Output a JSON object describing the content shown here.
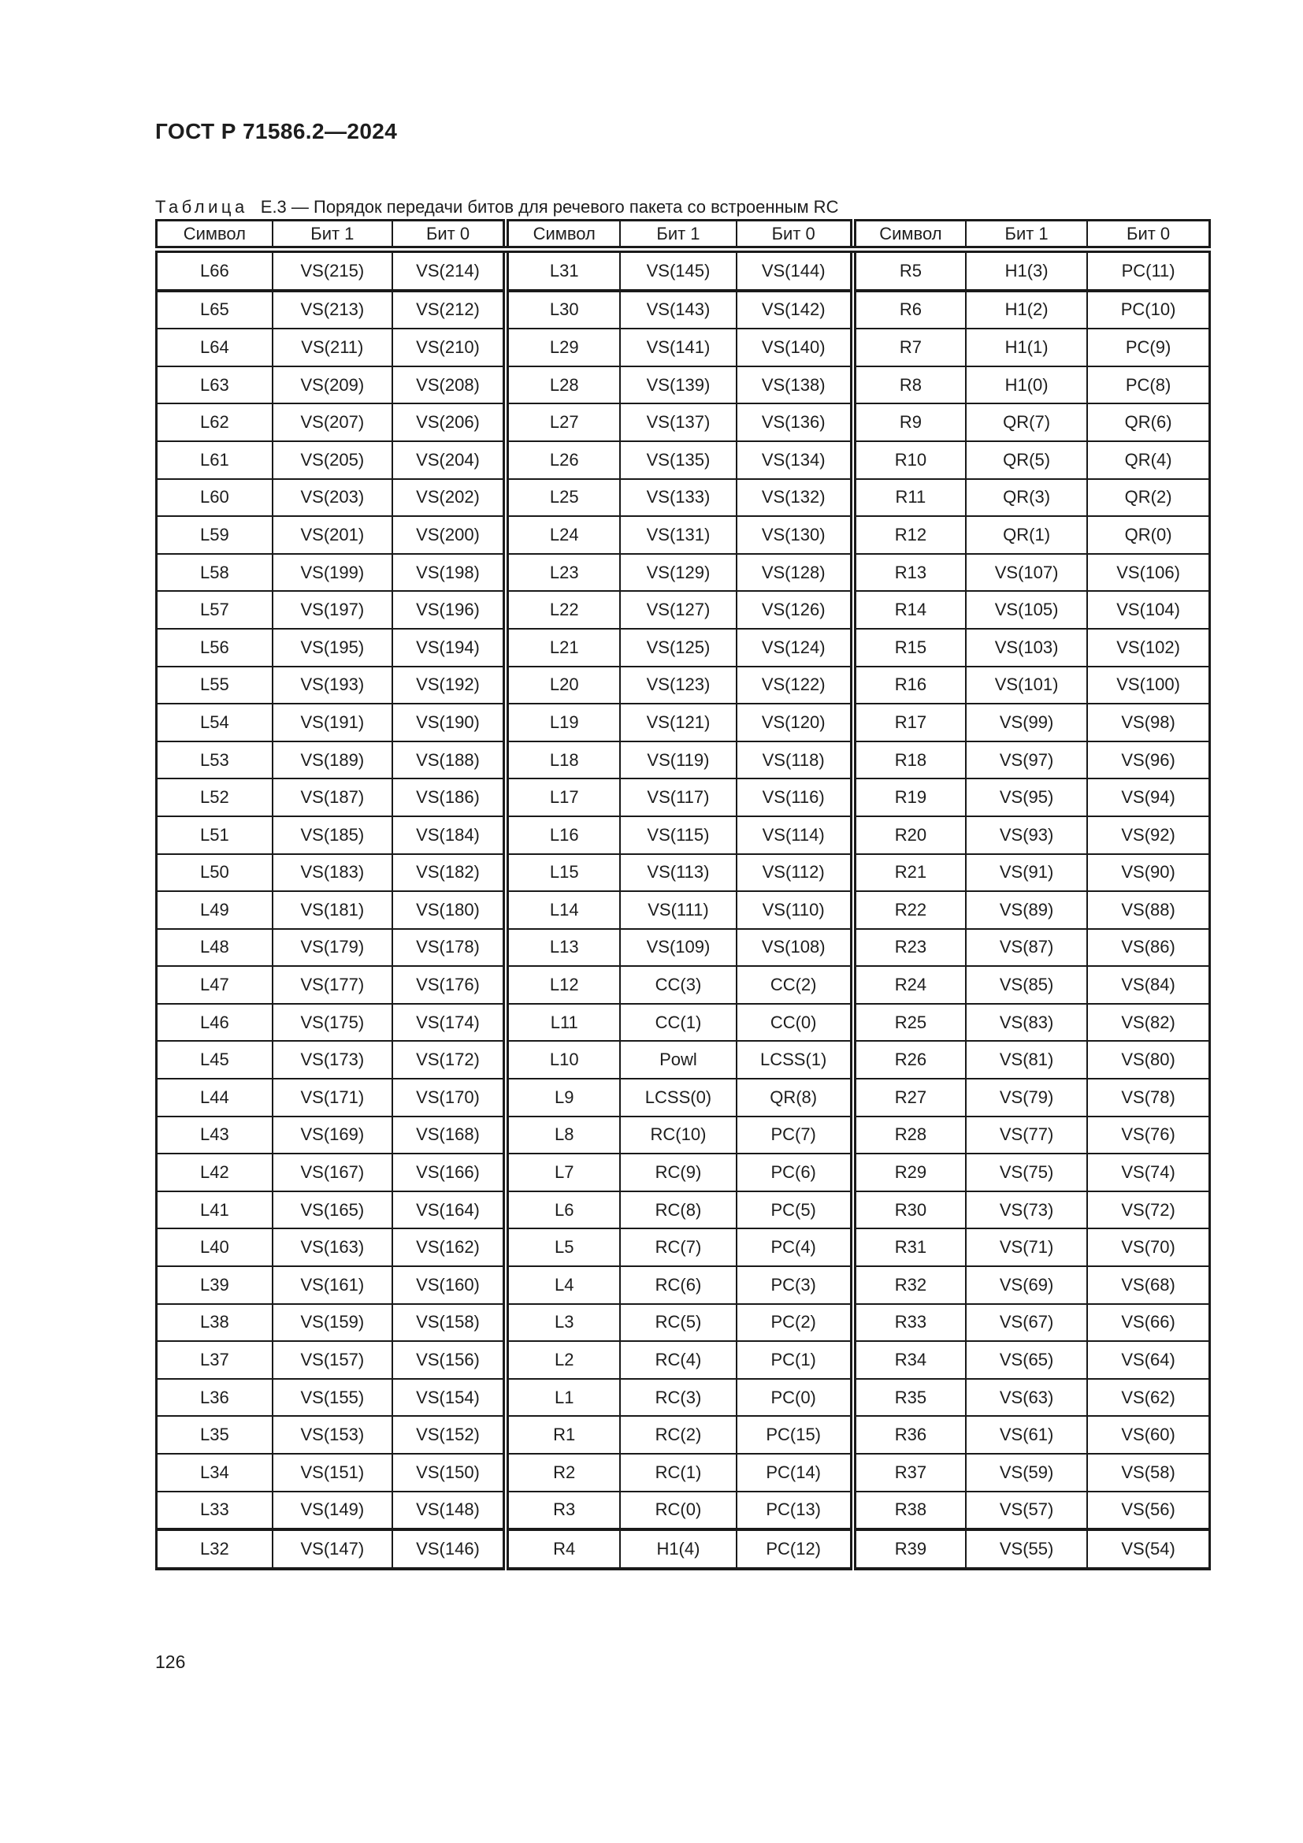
{
  "page": {
    "doc_number": "ГОСТ Р 71586.2—2024",
    "page_number": "126"
  },
  "colors": {
    "text": "#1d1d1d",
    "border": "#1a1a1a",
    "page_background": "#ffffff"
  },
  "table": {
    "caption_label": "Таблица",
    "caption_title": "Е.3 — Порядок передачи битов для речевого пакета со встроенным RC",
    "headers": [
      "Символ",
      "Бит 1",
      "Бит 0",
      "Символ",
      "Бит 1",
      "Бит 0",
      "Символ",
      "Бит 1",
      "Бит 0"
    ],
    "rows": [
      [
        "L66",
        "VS(215)",
        "VS(214)",
        "L31",
        "VS(145)",
        "VS(144)",
        "R5",
        "H1(3)",
        "PC(11)"
      ],
      [
        "L65",
        "VS(213)",
        "VS(212)",
        "L30",
        "VS(143)",
        "VS(142)",
        "R6",
        "H1(2)",
        "PC(10)"
      ],
      [
        "L64",
        "VS(211)",
        "VS(210)",
        "L29",
        "VS(141)",
        "VS(140)",
        "R7",
        "H1(1)",
        "PC(9)"
      ],
      [
        "L63",
        "VS(209)",
        "VS(208)",
        "L28",
        "VS(139)",
        "VS(138)",
        "R8",
        "H1(0)",
        "PC(8)"
      ],
      [
        "L62",
        "VS(207)",
        "VS(206)",
        "L27",
        "VS(137)",
        "VS(136)",
        "R9",
        "QR(7)",
        "QR(6)"
      ],
      [
        "L61",
        "VS(205)",
        "VS(204)",
        "L26",
        "VS(135)",
        "VS(134)",
        "R10",
        "QR(5)",
        "QR(4)"
      ],
      [
        "L60",
        "VS(203)",
        "VS(202)",
        "L25",
        "VS(133)",
        "VS(132)",
        "R11",
        "QR(3)",
        "QR(2)"
      ],
      [
        "L59",
        "VS(201)",
        "VS(200)",
        "L24",
        "VS(131)",
        "VS(130)",
        "R12",
        "QR(1)",
        "QR(0)"
      ],
      [
        "L58",
        "VS(199)",
        "VS(198)",
        "L23",
        "VS(129)",
        "VS(128)",
        "R13",
        "VS(107)",
        "VS(106)"
      ],
      [
        "L57",
        "VS(197)",
        "VS(196)",
        "L22",
        "VS(127)",
        "VS(126)",
        "R14",
        "VS(105)",
        "VS(104)"
      ],
      [
        "L56",
        "VS(195)",
        "VS(194)",
        "L21",
        "VS(125)",
        "VS(124)",
        "R15",
        "VS(103)",
        "VS(102)"
      ],
      [
        "L55",
        "VS(193)",
        "VS(192)",
        "L20",
        "VS(123)",
        "VS(122)",
        "R16",
        "VS(101)",
        "VS(100)"
      ],
      [
        "L54",
        "VS(191)",
        "VS(190)",
        "L19",
        "VS(121)",
        "VS(120)",
        "R17",
        "VS(99)",
        "VS(98)"
      ],
      [
        "L53",
        "VS(189)",
        "VS(188)",
        "L18",
        "VS(119)",
        "VS(118)",
        "R18",
        "VS(97)",
        "VS(96)"
      ],
      [
        "L52",
        "VS(187)",
        "VS(186)",
        "L17",
        "VS(117)",
        "VS(116)",
        "R19",
        "VS(95)",
        "VS(94)"
      ],
      [
        "L51",
        "VS(185)",
        "VS(184)",
        "L16",
        "VS(115)",
        "VS(114)",
        "R20",
        "VS(93)",
        "VS(92)"
      ],
      [
        "L50",
        "VS(183)",
        "VS(182)",
        "L15",
        "VS(113)",
        "VS(112)",
        "R21",
        "VS(91)",
        "VS(90)"
      ],
      [
        "L49",
        "VS(181)",
        "VS(180)",
        "L14",
        "VS(111)",
        "VS(110)",
        "R22",
        "VS(89)",
        "VS(88)"
      ],
      [
        "L48",
        "VS(179)",
        "VS(178)",
        "L13",
        "VS(109)",
        "VS(108)",
        "R23",
        "VS(87)",
        "VS(86)"
      ],
      [
        "L47",
        "VS(177)",
        "VS(176)",
        "L12",
        "CC(3)",
        "CC(2)",
        "R24",
        "VS(85)",
        "VS(84)"
      ],
      [
        "L46",
        "VS(175)",
        "VS(174)",
        "L11",
        "CC(1)",
        "CC(0)",
        "R25",
        "VS(83)",
        "VS(82)"
      ],
      [
        "L45",
        "VS(173)",
        "VS(172)",
        "L10",
        "Powl",
        "LCSS(1)",
        "R26",
        "VS(81)",
        "VS(80)"
      ],
      [
        "L44",
        "VS(171)",
        "VS(170)",
        "L9",
        "LCSS(0)",
        "QR(8)",
        "R27",
        "VS(79)",
        "VS(78)"
      ],
      [
        "L43",
        "VS(169)",
        "VS(168)",
        "L8",
        "RC(10)",
        "PC(7)",
        "R28",
        "VS(77)",
        "VS(76)"
      ],
      [
        "L42",
        "VS(167)",
        "VS(166)",
        "L7",
        "RC(9)",
        "PC(6)",
        "R29",
        "VS(75)",
        "VS(74)"
      ],
      [
        "L41",
        "VS(165)",
        "VS(164)",
        "L6",
        "RC(8)",
        "PC(5)",
        "R30",
        "VS(73)",
        "VS(72)"
      ],
      [
        "L40",
        "VS(163)",
        "VS(162)",
        "L5",
        "RC(7)",
        "PC(4)",
        "R31",
        "VS(71)",
        "VS(70)"
      ],
      [
        "L39",
        "VS(161)",
        "VS(160)",
        "L4",
        "RC(6)",
        "PC(3)",
        "R32",
        "VS(69)",
        "VS(68)"
      ],
      [
        "L38",
        "VS(159)",
        "VS(158)",
        "L3",
        "RC(5)",
        "PC(2)",
        "R33",
        "VS(67)",
        "VS(66)"
      ],
      [
        "L37",
        "VS(157)",
        "VS(156)",
        "L2",
        "RC(4)",
        "PC(1)",
        "R34",
        "VS(65)",
        "VS(64)"
      ],
      [
        "L36",
        "VS(155)",
        "VS(154)",
        "L1",
        "RC(3)",
        "PC(0)",
        "R35",
        "VS(63)",
        "VS(62)"
      ],
      [
        "L35",
        "VS(153)",
        "VS(152)",
        "R1",
        "RC(2)",
        "PC(15)",
        "R36",
        "VS(61)",
        "VS(60)"
      ],
      [
        "L34",
        "VS(151)",
        "VS(150)",
        "R2",
        "RC(1)",
        "PC(14)",
        "R37",
        "VS(59)",
        "VS(58)"
      ],
      [
        "L33",
        "VS(149)",
        "VS(148)",
        "R3",
        "RC(0)",
        "PC(13)",
        "R38",
        "VS(57)",
        "VS(56)"
      ],
      [
        "L32",
        "VS(147)",
        "VS(146)",
        "R4",
        "H1(4)",
        "PC(12)",
        "R39",
        "VS(55)",
        "VS(54)"
      ]
    ]
  }
}
